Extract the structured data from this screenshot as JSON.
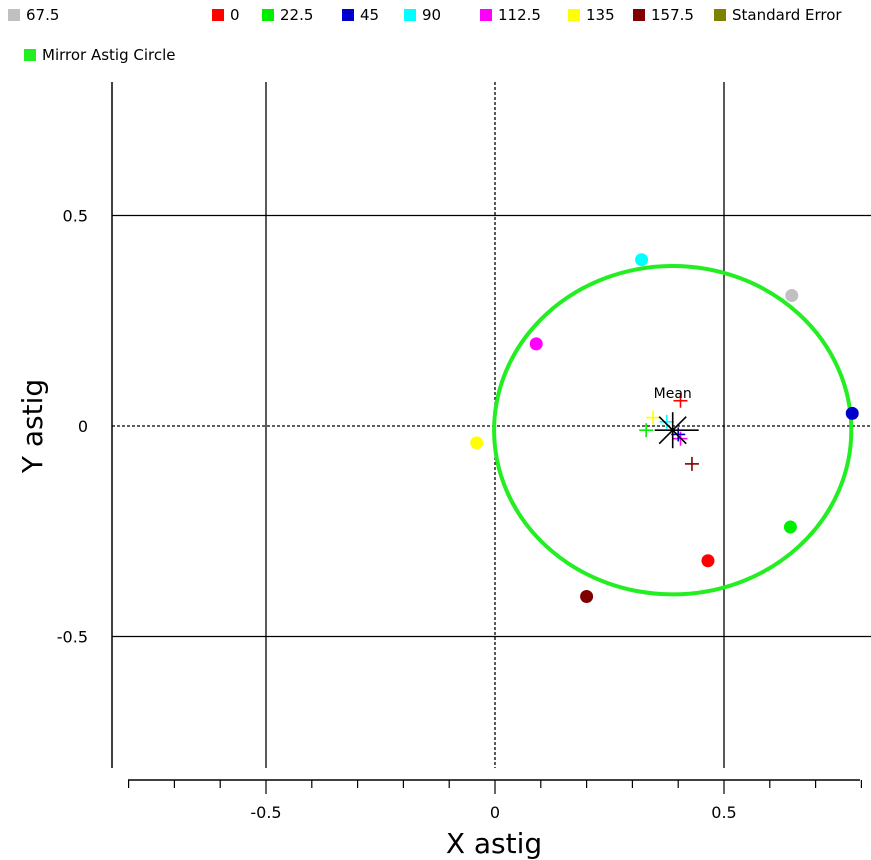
{
  "chart_data": {
    "type": "scatter",
    "xlabel": "X astig",
    "ylabel": "Y astig",
    "xlim": [
      -0.8,
      0.8
    ],
    "ylim": [
      -0.8,
      0.8
    ],
    "x_ticks": [
      -0.5,
      0,
      0.5
    ],
    "y_ticks": [
      0.5,
      0,
      -0.5
    ],
    "x_tick_labels": [
      "-0.5",
      "0",
      "0.5"
    ],
    "y_tick_labels": [
      "0.5",
      "0",
      "-0.5"
    ],
    "grid": true,
    "legend": {
      "placement": "top",
      "entries": [
        {
          "label": "67.5",
          "color": "#c0c0c0"
        },
        {
          "label": "0",
          "color": "#ff0000"
        },
        {
          "label": "22.5",
          "color": "#00ee00"
        },
        {
          "label": "45",
          "color": "#0000cc"
        },
        {
          "label": "90",
          "color": "#00ffff"
        },
        {
          "label": "112.5",
          "color": "#ff00ff"
        },
        {
          "label": "135",
          "color": "#ffff00"
        },
        {
          "label": "157.5",
          "color": "#800000"
        },
        {
          "label": "Standard Error",
          "color": "#808000"
        },
        {
          "label": "Mirror Astig Circle",
          "color": "#22ee22"
        }
      ]
    },
    "points": [
      {
        "series": "0",
        "x": 0.465,
        "y": -0.32,
        "color": "#ff0000"
      },
      {
        "series": "22.5",
        "x": 0.645,
        "y": -0.24,
        "color": "#00ee00"
      },
      {
        "series": "45",
        "x": 0.78,
        "y": 0.03,
        "color": "#0000cc"
      },
      {
        "series": "67.5",
        "x": 0.648,
        "y": 0.31,
        "color": "#c0c0c0"
      },
      {
        "series": "90",
        "x": 0.32,
        "y": 0.395,
        "color": "#00ffff"
      },
      {
        "series": "112.5",
        "x": 0.09,
        "y": 0.195,
        "color": "#ff00ff"
      },
      {
        "series": "135",
        "x": -0.04,
        "y": -0.04,
        "color": "#ffff00"
      },
      {
        "series": "157.5",
        "x": 0.2,
        "y": -0.405,
        "color": "#800000"
      }
    ],
    "cross_markers": [
      {
        "x": 0.405,
        "y": 0.06,
        "color": "#ff0000"
      },
      {
        "x": 0.43,
        "y": -0.09,
        "color": "#800000"
      },
      {
        "x": 0.33,
        "y": -0.01,
        "color": "#00ee00"
      },
      {
        "x": 0.345,
        "y": 0.02,
        "color": "#ffff00"
      },
      {
        "x": 0.405,
        "y": -0.03,
        "color": "#ff00ff"
      },
      {
        "x": 0.375,
        "y": 0.01,
        "color": "#00ffff"
      },
      {
        "x": 0.4,
        "y": -0.02,
        "color": "#0000cc"
      }
    ],
    "circle": {
      "cx": 0.388,
      "cy": -0.01,
      "r": 0.39,
      "color": "#22ee22"
    },
    "mean": {
      "x": 0.388,
      "y": -0.01,
      "label": "Mean"
    }
  }
}
